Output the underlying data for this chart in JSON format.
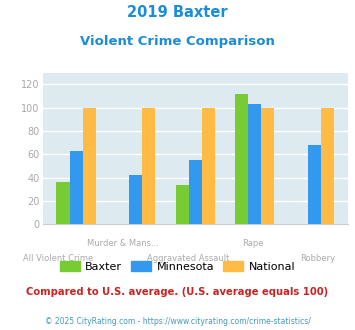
{
  "title_line1": "2019 Baxter",
  "title_line2": "Violent Crime Comparison",
  "title_color": "#1a8cd8",
  "categories_top": [
    "",
    "Murder & Mans...",
    "",
    "Rape",
    ""
  ],
  "categories_bottom": [
    "All Violent Crime",
    "",
    "Aggravated Assault",
    "",
    "Robbery"
  ],
  "baxter": [
    36,
    0,
    34,
    112,
    0
  ],
  "minnesota": [
    63,
    42,
    55,
    103,
    68
  ],
  "national": [
    100,
    100,
    100,
    100,
    100
  ],
  "baxter_color": "#77cc33",
  "minnesota_color": "#3399ee",
  "national_color": "#ffbb44",
  "ylim": [
    0,
    130
  ],
  "yticks": [
    0,
    20,
    40,
    60,
    80,
    100,
    120
  ],
  "bg_color": "#ddeaf0",
  "fig_bg": "#ffffff",
  "legend_labels": [
    "Baxter",
    "Minnesota",
    "National"
  ],
  "note_text": "Compared to U.S. average. (U.S. average equals 100)",
  "note_color": "#cc2222",
  "footer_text": "© 2025 CityRating.com - https://www.cityrating.com/crime-statistics/",
  "footer_color": "#4499bb",
  "grid_color": "#ffffff",
  "tick_color": "#aaaaaa",
  "label_color": "#aaaaaa"
}
